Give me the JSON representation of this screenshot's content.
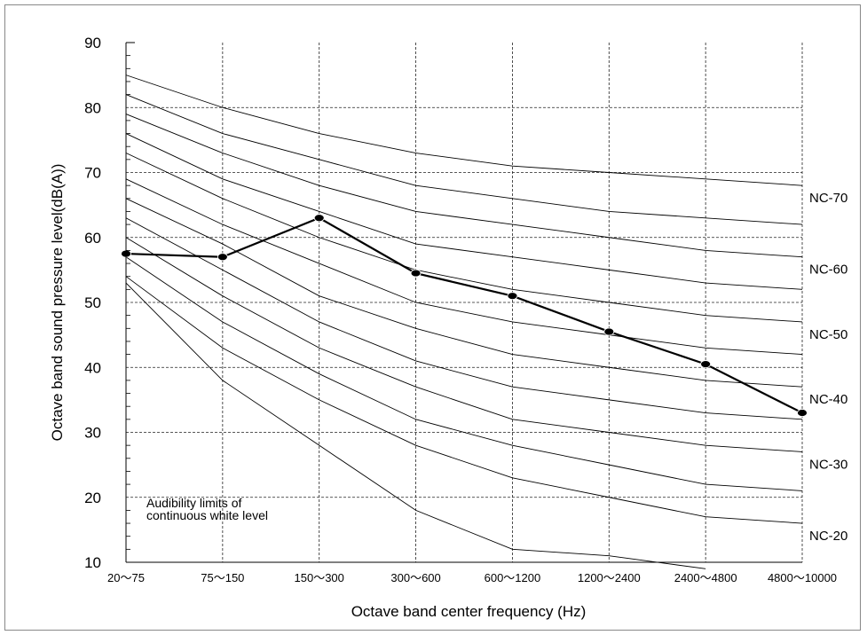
{
  "chart_data": {
    "type": "line",
    "title": "",
    "xlabel": "Octave band center frequency (Hz)",
    "ylabel": "Octave band sound pressure level(dB(A))",
    "categories": [
      "20～75",
      "75～150",
      "150～300",
      "300～600",
      "600～1200",
      "1200～2400",
      "2400～4800",
      "4800～10000"
    ],
    "yticks": [
      10,
      20,
      30,
      40,
      50,
      60,
      70,
      80,
      90
    ],
    "ylim": [
      10,
      90
    ],
    "grid": true,
    "nc_curves": [
      {
        "label": "",
        "values": [
          53,
          38,
          28,
          18,
          12,
          11,
          9,
          null
        ]
      },
      {
        "label": "NC-20",
        "values": [
          54,
          43,
          35,
          28,
          23,
          20,
          17,
          16
        ]
      },
      {
        "label": "",
        "values": [
          57,
          47,
          39,
          32,
          28,
          25,
          22,
          21
        ]
      },
      {
        "label": "NC-30",
        "values": [
          60,
          51,
          43,
          37,
          32,
          30,
          28,
          27
        ]
      },
      {
        "label": "",
        "values": [
          63,
          55,
          47,
          41,
          37,
          35,
          33,
          32
        ]
      },
      {
        "label": "NC-40",
        "values": [
          66,
          59,
          51,
          46,
          42,
          40,
          38,
          37
        ]
      },
      {
        "label": "",
        "values": [
          69,
          62,
          56,
          50,
          47,
          45,
          43,
          42
        ]
      },
      {
        "label": "NC-50",
        "values": [
          73,
          66,
          60,
          55,
          52,
          50,
          48,
          47
        ]
      },
      {
        "label": "",
        "values": [
          76,
          69,
          64,
          59,
          57,
          55,
          53,
          52
        ]
      },
      {
        "label": "NC-60",
        "values": [
          79,
          73,
          68,
          64,
          62,
          60,
          58,
          57
        ]
      },
      {
        "label": "",
        "values": [
          82,
          76,
          72,
          68,
          66,
          64,
          63,
          62
        ]
      },
      {
        "label": "NC-70",
        "values": [
          85,
          80,
          76,
          73,
          71,
          70,
          69,
          68
        ]
      }
    ],
    "series": [
      {
        "values": [
          57.5,
          57,
          63,
          54.5,
          51,
          45.5,
          40.5,
          33
        ]
      }
    ],
    "annotation": [
      "Audibility limits of",
      "continuous white level"
    ]
  }
}
